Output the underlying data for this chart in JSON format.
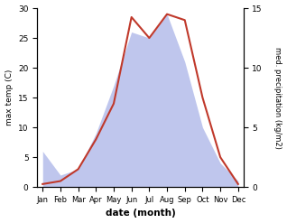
{
  "months": [
    "Jan",
    "Feb",
    "Mar",
    "Apr",
    "May",
    "Jun",
    "Jul",
    "Aug",
    "Sep",
    "Oct",
    "Nov",
    "Dec"
  ],
  "temperature": [
    0.5,
    1.0,
    3.0,
    8.0,
    14.0,
    28.5,
    25.0,
    29.0,
    28.0,
    15.0,
    5.0,
    0.5
  ],
  "precipitation": [
    3.0,
    1.0,
    1.5,
    4.5,
    8.5,
    13.0,
    12.5,
    14.5,
    10.5,
    5.0,
    2.0,
    0.5
  ],
  "temp_color": "#c0392b",
  "precip_color": "#aab4e8",
  "temp_ylim": [
    0,
    30
  ],
  "precip_ylim": [
    0,
    15
  ],
  "xlabel": "date (month)",
  "ylabel_left": "max temp (C)",
  "ylabel_right": "med. precipitation (kg/m2)",
  "bg_color": "#ffffff"
}
